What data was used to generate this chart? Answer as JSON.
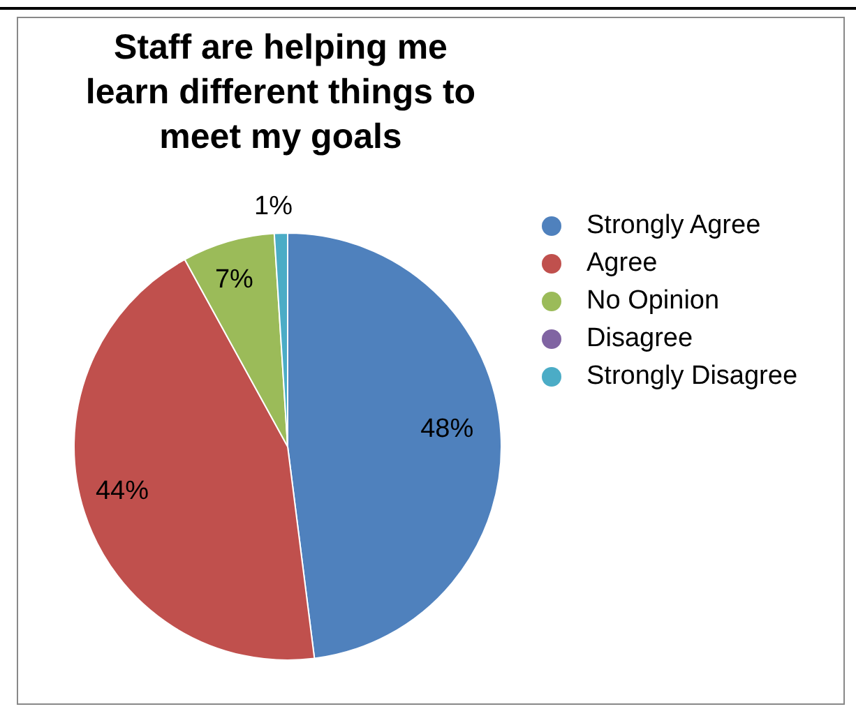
{
  "chart_data": {
    "type": "pie",
    "title": "Staff are helping me learn different things to meet my goals",
    "categories": [
      "Strongly Agree",
      "Agree",
      "No Opinion",
      "Disagree",
      "Strongly Disagree"
    ],
    "values": [
      48,
      44,
      7,
      0,
      1
    ],
    "colors": [
      "#4f81bd",
      "#c0504d",
      "#9bbb59",
      "#8064a2",
      "#4bacc6"
    ],
    "value_labels": [
      "48%",
      "44%",
      "7%",
      null,
      "1%"
    ],
    "legend": "right"
  }
}
